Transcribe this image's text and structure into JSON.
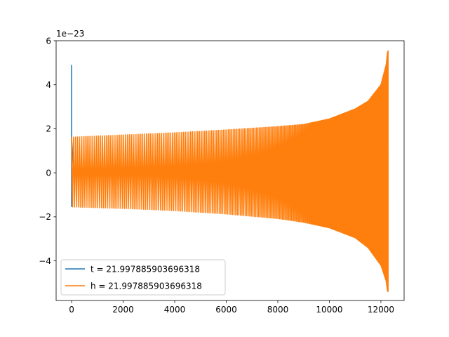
{
  "chart_data": {
    "type": "line",
    "title": "",
    "xlabel": "",
    "ylabel": "",
    "offset_text": "1e−23",
    "xlim": [
      -600,
      12900
    ],
    "ylim": [
      -5.8,
      6.0
    ],
    "xticks": [
      0,
      2000,
      4000,
      6000,
      8000,
      10000,
      12000
    ],
    "xtick_labels": [
      "0",
      "2000",
      "4000",
      "6000",
      "8000",
      "10000",
      "12000"
    ],
    "yticks": [
      -4,
      -2,
      0,
      2,
      4,
      6
    ],
    "ytick_labels": [
      "−4",
      "−2",
      "0",
      "2",
      "4",
      "6"
    ],
    "grid": false,
    "legend_position": "lower-left",
    "series": [
      {
        "name": "t = 21.997885903696318",
        "color": "#1f77b4",
        "x": [
          0,
          0,
          0,
          0,
          60
        ],
        "y": [
          -1.55,
          4.9,
          -1.5,
          1.6,
          0.3
        ]
      },
      {
        "name": "h = 21.997885903696318",
        "color": "#ff7f0e",
        "oscillation": {
          "x_start": 0,
          "x_end": 12280,
          "envelope_x": [
            0,
            2000,
            4000,
            6000,
            8000,
            9000,
            10000,
            11000,
            11500,
            12000,
            12200,
            12250,
            12280
          ],
          "envelope_upper": [
            1.62,
            1.72,
            1.82,
            1.95,
            2.1,
            2.2,
            2.45,
            2.9,
            3.25,
            4.0,
            4.9,
            5.45,
            5.55
          ],
          "envelope_lower": [
            -1.55,
            -1.62,
            -1.72,
            -1.87,
            -2.08,
            -2.25,
            -2.5,
            -2.95,
            -3.4,
            -4.2,
            -4.9,
            -5.35,
            -5.4
          ],
          "start_period": 75,
          "end_period": 8
        }
      }
    ]
  }
}
